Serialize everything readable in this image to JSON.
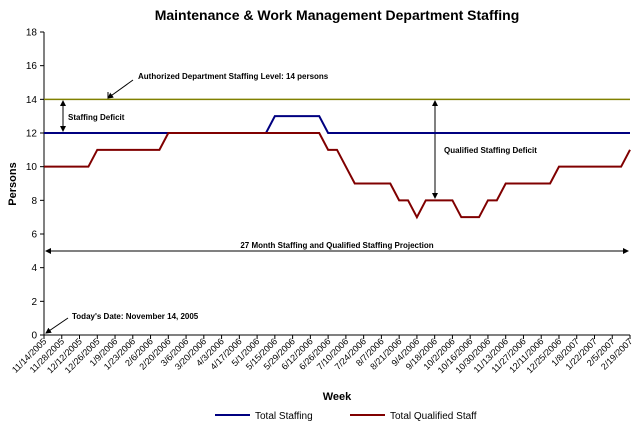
{
  "chart_data": {
    "type": "line",
    "title": "Maintenance & Work Management Department Staffing",
    "x_label": "Week",
    "y_label": "Persons",
    "categories": [
      "11/14/2005",
      null,
      "11/28/2005",
      null,
      "12/12/2005",
      null,
      "12/26/2005",
      null,
      "1/9/2006",
      null,
      "1/23/2006",
      null,
      "2/6/2006",
      null,
      "2/20/2006",
      null,
      "3/6/2006",
      null,
      "3/20/2006",
      null,
      "4/3/2006",
      null,
      "4/17/2006",
      null,
      "5/1/2006",
      null,
      "5/15/2006",
      null,
      "5/29/2006",
      null,
      "6/12/2006",
      null,
      "6/26/2006",
      null,
      "7/10/2006",
      null,
      "7/24/2006",
      null,
      "8/7/2006",
      null,
      "8/21/2006",
      null,
      "9/4/2006",
      null,
      "9/18/2006",
      null,
      "10/2/2006",
      null,
      "10/16/2006",
      null,
      "10/30/2006",
      null,
      "11/13/2006",
      null,
      "11/27/2006",
      null,
      "12/11/2006",
      null,
      "12/25/2006",
      null,
      "1/8/2007",
      null,
      "1/22/2007",
      null,
      "2/5/2007",
      null,
      "2/19/2007"
    ],
    "series": [
      {
        "name": "Total Staffing",
        "color": "#000080",
        "values": [
          12,
          12,
          12,
          12,
          12,
          12,
          12,
          12,
          12,
          12,
          12,
          12,
          12,
          12,
          12,
          12,
          12,
          12,
          12,
          12,
          12,
          12,
          12,
          12,
          12,
          12,
          13,
          13,
          13,
          13,
          13,
          13,
          12,
          12,
          12,
          12,
          12,
          12,
          12,
          12,
          12,
          12,
          12,
          12,
          12,
          12,
          12,
          12,
          12,
          12,
          12,
          12,
          12,
          12,
          12,
          12,
          12,
          12,
          12,
          12,
          12,
          12,
          12,
          12,
          12,
          12,
          12
        ]
      },
      {
        "name": "Total Qualified Staff",
        "color": "#800000",
        "values": [
          10,
          10,
          10,
          10,
          10,
          10,
          11,
          11,
          11,
          11,
          11,
          11,
          11,
          11,
          12,
          12,
          12,
          12,
          12,
          12,
          12,
          12,
          12,
          12,
          12,
          12,
          12,
          12,
          12,
          12,
          12,
          12,
          11,
          11,
          10,
          9,
          9,
          9,
          9,
          9,
          8,
          8,
          7,
          8,
          8,
          8,
          8,
          7,
          7,
          7,
          8,
          8,
          9,
          9,
          9,
          9,
          9,
          9,
          10,
          10,
          10,
          10,
          10,
          10,
          10,
          10,
          11
        ]
      }
    ],
    "reference_line": {
      "value": 14,
      "color": "#808000",
      "label": "Authorized Department Staffing Level:  14 persons"
    },
    "annotations": [
      "Staffing Deficit",
      "Qualified Staffing Deficit",
      "27 Month Staffing and Qualified Staffing Projection",
      "Today's Date:  November 14, 2005"
    ],
    "ylim": [
      0,
      18
    ],
    "yticks": [
      0,
      2,
      4,
      6,
      8,
      10,
      12,
      14,
      16,
      18
    ],
    "grid": false,
    "legend": "bottom"
  }
}
